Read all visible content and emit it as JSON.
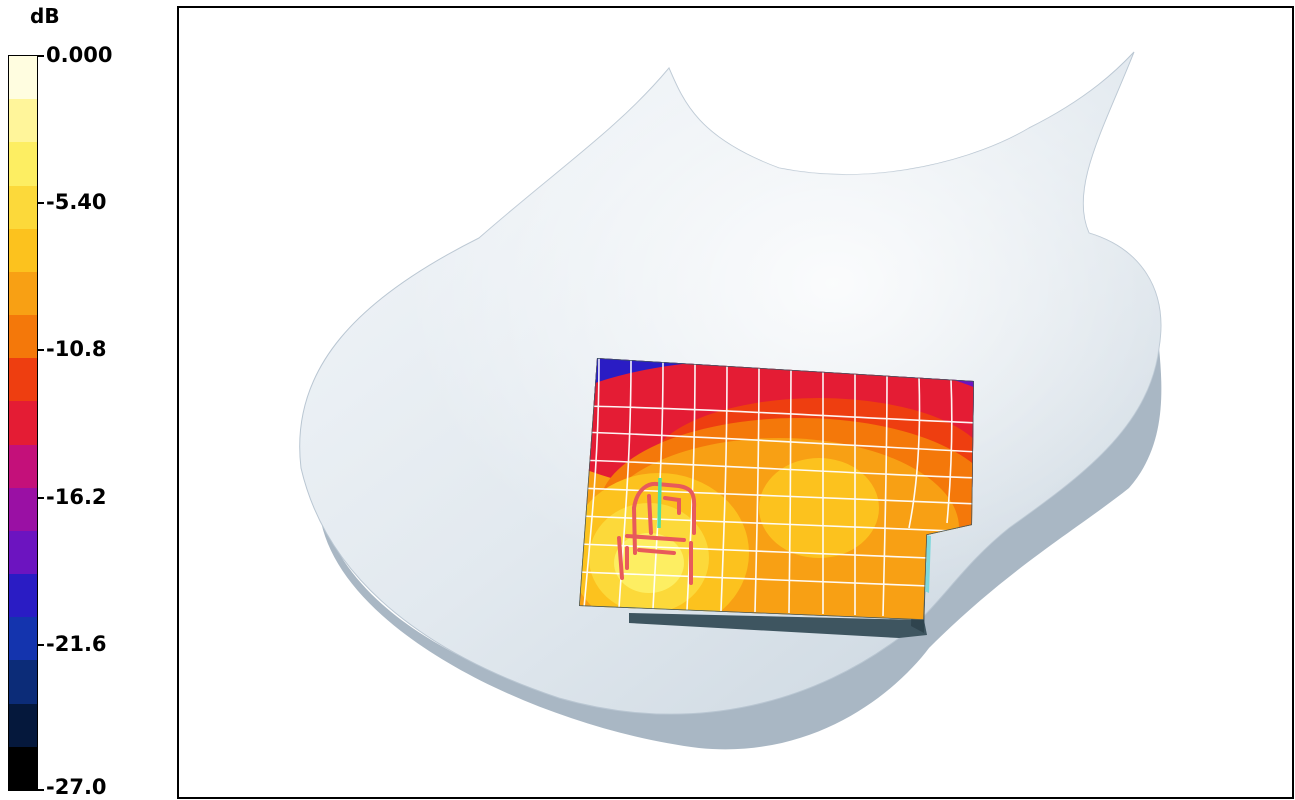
{
  "legend": {
    "unit": "dB",
    "labels": [
      "0.000",
      "-5.40",
      "-10.8",
      "-16.2",
      "-21.6",
      "-27.0"
    ],
    "colors": [
      "#fffde0",
      "#fff59a",
      "#fdee62",
      "#fcd93a",
      "#fcc21e",
      "#f8a014",
      "#f4780a",
      "#ee3e10",
      "#e41c34",
      "#c4107a",
      "#9a10a4",
      "#6c14c0",
      "#2a1cc4",
      "#1434ae",
      "#0c2c78",
      "#05183c",
      "#000000"
    ]
  },
  "viewport": {
    "shell_color": "#e4eaf0",
    "shell_shadow_color": "#9fb0bf",
    "mesh_color": "#ffffff",
    "probe_color": "#e85a5a",
    "probe_feed_color": "#4fe0a0",
    "edge_color": "#3e5560",
    "cyan_tab_color": "#7ed8dc"
  }
}
